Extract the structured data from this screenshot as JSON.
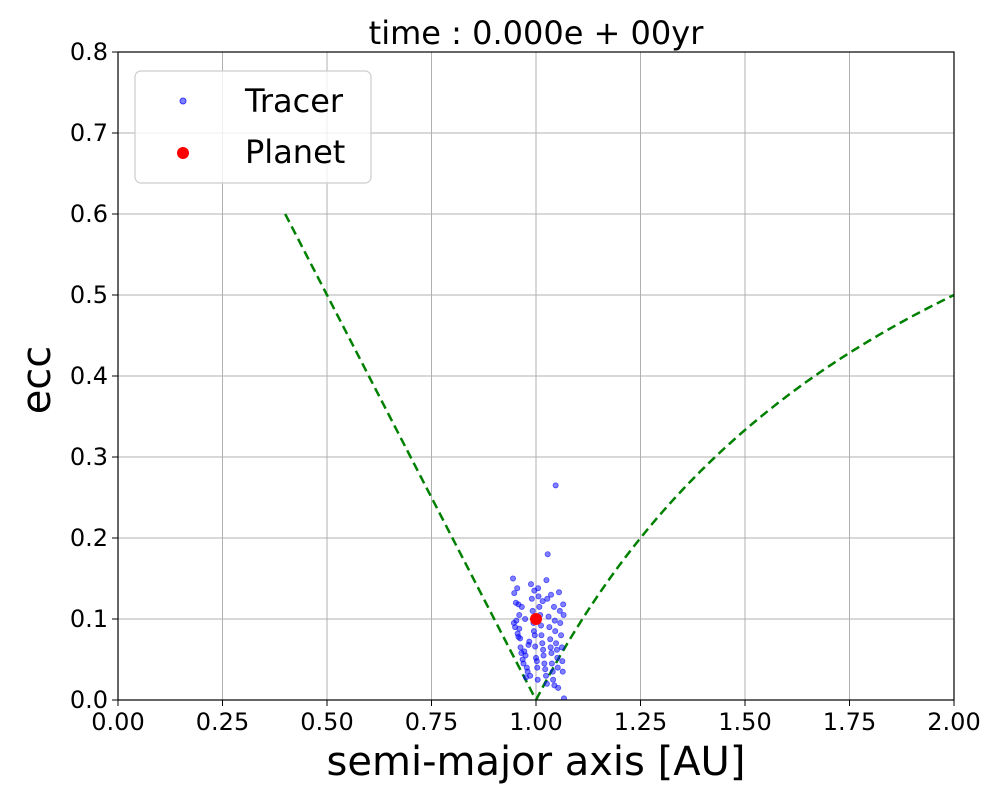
{
  "chart_data": {
    "type": "scatter",
    "title": "time : 0.000e + 00yr",
    "xlabel": "semi-major axis [AU]",
    "ylabel": "ecc",
    "xlim": [
      0.0,
      2.0
    ],
    "ylim": [
      0.0,
      0.8
    ],
    "xticks": [
      "0.00",
      "0.25",
      "0.50",
      "0.75",
      "1.00",
      "1.25",
      "1.50",
      "1.75",
      "2.00"
    ],
    "yticks": [
      "0.0",
      "0.1",
      "0.2",
      "0.3",
      "0.4",
      "0.5",
      "0.6",
      "0.7",
      "0.8"
    ],
    "grid": true,
    "legend_position": "top-left",
    "colors": {
      "tracer": "#0000ff",
      "planet": "#ff0000",
      "boundary": "#008000"
    },
    "series": [
      {
        "name": "Tracer",
        "marker": "small-circle",
        "points": [
          [
            0.945,
            0.15
          ],
          [
            0.948,
            0.132
          ],
          [
            0.952,
            0.12
          ],
          [
            0.955,
            0.138
          ],
          [
            0.958,
            0.118
          ],
          [
            0.947,
            0.095
          ],
          [
            0.95,
            0.09
          ],
          [
            0.953,
            0.098
          ],
          [
            0.956,
            0.082
          ],
          [
            0.958,
            0.078
          ],
          [
            0.96,
            0.088
          ],
          [
            0.962,
            0.076
          ],
          [
            0.963,
            0.065
          ],
          [
            0.965,
            0.058
          ],
          [
            0.968,
            0.05
          ],
          [
            0.97,
            0.045
          ],
          [
            0.972,
            0.06
          ],
          [
            0.975,
            0.055
          ],
          [
            0.978,
            0.04
          ],
          [
            0.98,
            0.035
          ],
          [
            0.982,
            0.068
          ],
          [
            0.984,
            0.072
          ],
          [
            0.986,
            0.03
          ],
          [
            0.988,
            0.143
          ],
          [
            0.99,
            0.125
          ],
          [
            0.992,
            0.11
          ],
          [
            0.994,
            0.095
          ],
          [
            0.995,
            0.085
          ],
          [
            0.997,
            0.08
          ],
          [
            0.998,
            0.066
          ],
          [
            1.0,
            0.052
          ],
          [
            1.002,
            0.048
          ],
          [
            1.003,
            0.04
          ],
          [
            1.005,
            0.138
          ],
          [
            1.006,
            0.128
          ],
          [
            1.008,
            0.115
          ],
          [
            1.01,
            0.105
          ],
          [
            1.012,
            0.092
          ],
          [
            1.013,
            0.08
          ],
          [
            1.015,
            0.07
          ],
          [
            1.017,
            0.062
          ],
          [
            1.018,
            0.055
          ],
          [
            1.02,
            0.045
          ],
          [
            1.022,
            0.038
          ],
          [
            1.024,
            0.03
          ],
          [
            1.025,
            0.148
          ],
          [
            1.027,
            0.125
          ],
          [
            1.028,
            0.18
          ],
          [
            1.03,
            0.103
          ],
          [
            1.032,
            0.09
          ],
          [
            1.034,
            0.075
          ],
          [
            1.035,
            0.065
          ],
          [
            1.037,
            0.058
          ],
          [
            1.038,
            0.045
          ],
          [
            1.04,
            0.035
          ],
          [
            1.041,
            0.025
          ],
          [
            1.043,
            0.115
          ],
          [
            1.045,
            0.098
          ],
          [
            1.046,
            0.085
          ],
          [
            1.047,
            0.265
          ],
          [
            1.048,
            0.07
          ],
          [
            1.05,
            0.062
          ],
          [
            1.051,
            0.052
          ],
          [
            1.052,
            0.04
          ],
          [
            1.053,
            0.015
          ],
          [
            1.055,
            0.133
          ],
          [
            1.057,
            0.11
          ],
          [
            1.058,
            0.095
          ],
          [
            1.06,
            0.08
          ],
          [
            1.062,
            0.065
          ],
          [
            1.063,
            0.048
          ],
          [
            1.064,
            0.035
          ],
          [
            1.065,
            0.118
          ],
          [
            1.066,
            0.105
          ],
          [
            1.067,
            0.002
          ],
          [
            0.96,
            0.105
          ],
          [
            0.966,
            0.115
          ],
          [
            0.974,
            0.1
          ],
          [
            0.996,
            0.135
          ],
          [
            1.016,
            0.122
          ],
          [
            1.036,
            0.13
          ],
          [
            1.044,
            0.018
          ],
          [
            0.976,
            0.028
          ],
          [
            1.004,
            0.025
          ],
          [
            1.026,
            0.02
          ]
        ]
      },
      {
        "name": "Planet",
        "marker": "large-circle",
        "points": [
          [
            1.0,
            0.1
          ]
        ]
      },
      {
        "name": "",
        "style": "dashed-curve",
        "functions": [
          "ecc = 1 - a / a_planet (a < 1)",
          "ecc = 1 - a_planet / a (a > 1)"
        ]
      }
    ]
  }
}
